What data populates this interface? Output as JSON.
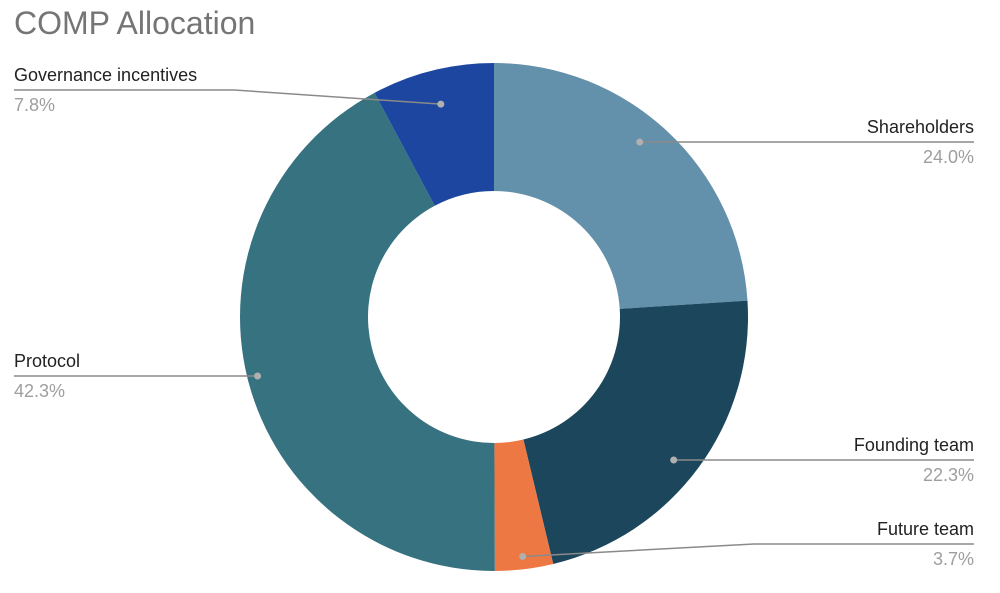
{
  "chart_data": {
    "type": "pie",
    "variant": "donut",
    "title": "COMP Allocation",
    "slices": [
      {
        "label": "Shareholders",
        "value": 24.0,
        "display": "24.0%",
        "color": "#6390ab"
      },
      {
        "label": "Founding team",
        "value": 22.3,
        "display": "22.3%",
        "color": "#1b465c"
      },
      {
        "label": "Future team",
        "value": 3.7,
        "display": "3.7%",
        "color": "#ee7843"
      },
      {
        "label": "Protocol",
        "value": 42.3,
        "display": "42.3%",
        "color": "#377280"
      },
      {
        "label": "Governance incentives",
        "value": 7.8,
        "display": "7.8%",
        "color": "#1c46a0"
      }
    ],
    "start_angle": "12 o'clock",
    "direction": "clockwise",
    "legend": "none",
    "label_style": "outside labels with leader lines"
  }
}
